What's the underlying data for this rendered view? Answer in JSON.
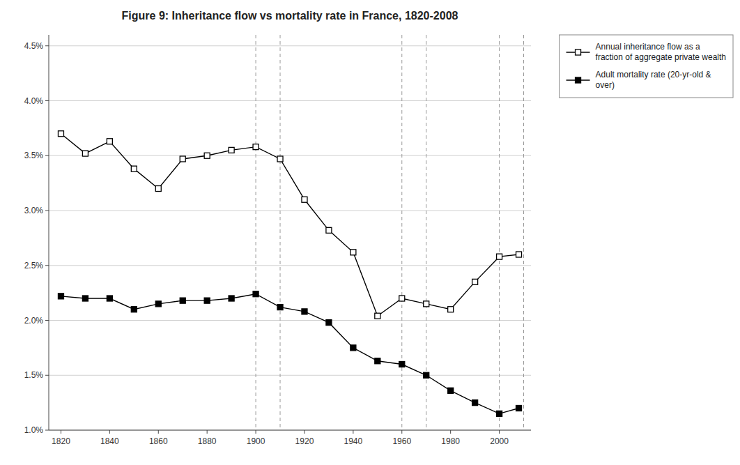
{
  "chart_data": {
    "type": "line",
    "title": "Figure 9: Inheritance flow vs mortality rate in France, 1820-2008",
    "x": [
      1820,
      1830,
      1840,
      1850,
      1860,
      1870,
      1880,
      1890,
      1900,
      1910,
      1920,
      1930,
      1940,
      1950,
      1960,
      1970,
      1980,
      1990,
      2000,
      2008
    ],
    "series": [
      {
        "name": "Annual inheritance flow as a\nfraction of aggregate private wealth",
        "color": "#000000",
        "marker": "open-square",
        "line_style": "solid",
        "values": [
          0.037,
          0.0352,
          0.0363,
          0.0338,
          0.032,
          0.0347,
          0.035,
          0.0355,
          0.0358,
          0.0347,
          0.031,
          0.0282,
          0.0262,
          0.0204,
          0.022,
          0.0215,
          0.021,
          0.0235,
          0.0258,
          0.026
        ]
      },
      {
        "name": "Adult mortality rate (20-yr-old &\nover)",
        "color": "#000000",
        "marker": "square",
        "line_style": "solid",
        "values": [
          0.0222,
          0.022,
          0.022,
          0.021,
          0.0215,
          0.0218,
          0.0218,
          0.022,
          0.0224,
          0.0212,
          0.0208,
          0.0198,
          0.0175,
          0.0163,
          0.016,
          0.015,
          0.0136,
          0.0125,
          0.0115,
          0.012
        ]
      }
    ],
    "vlines": [
      1900,
      1910,
      1960,
      1970,
      2000,
      2010
    ],
    "xlim": [
      1815,
      2013
    ],
    "ylim": [
      0.01,
      0.046
    ],
    "xticks": [
      1820,
      1840,
      1860,
      1880,
      1900,
      1920,
      1940,
      1960,
      1980,
      2000
    ],
    "yticks": [
      {
        "value": 0.01,
        "label": "1.0%"
      },
      {
        "value": 0.015,
        "label": "1.5%"
      },
      {
        "value": 0.02,
        "label": "2.0%"
      },
      {
        "value": 0.025,
        "label": "2.5%"
      },
      {
        "value": 0.03,
        "label": "3.0%"
      },
      {
        "value": 0.035,
        "label": "3.5%"
      },
      {
        "value": 0.04,
        "label": "4.0%"
      },
      {
        "value": 0.045,
        "label": "4.5%"
      }
    ],
    "grid": true,
    "legend": "upper right"
  }
}
